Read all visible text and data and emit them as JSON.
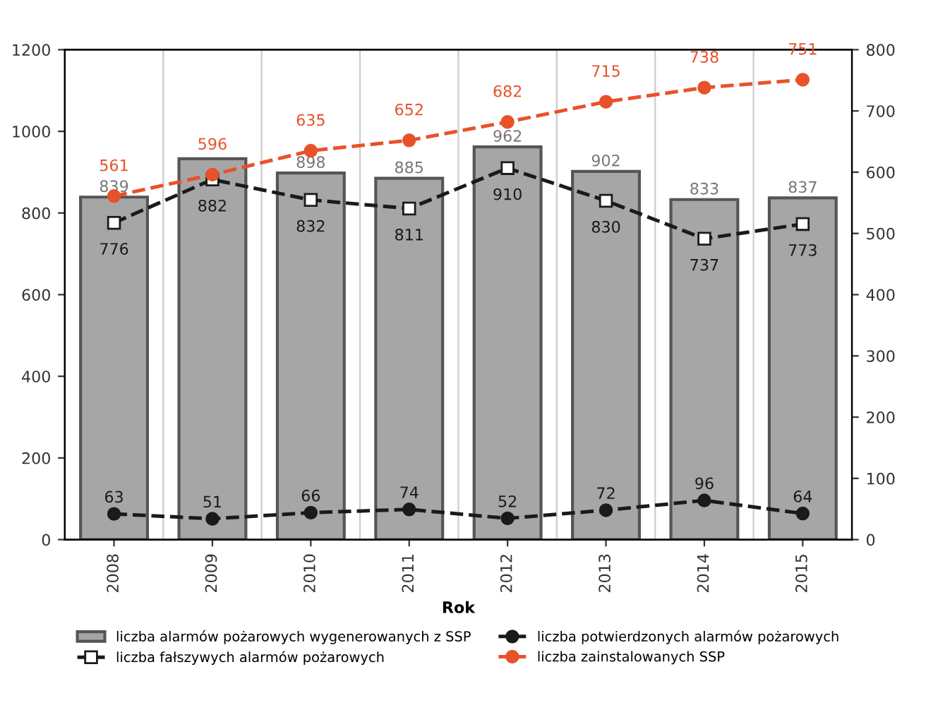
{
  "chart_data": {
    "type": "bar",
    "xlabel": "Rok",
    "categories": [
      "2008",
      "2009",
      "2010",
      "2011",
      "2012",
      "2013",
      "2014",
      "2015"
    ],
    "series": [
      {
        "name": "liczba alarmów pożarowych wygenerowanych z SSP",
        "color": "#a6a6a6",
        "values": [
          839,
          933,
          898,
          885,
          962,
          902,
          833,
          837
        ],
        "value_labels": [
          "839",
          null,
          "898",
          "885",
          "962",
          "902",
          "833",
          "837"
        ]
      },
      {
        "name": "liczba fałszywych alarmów pożarowych",
        "type": "line",
        "color": "#1a1a1a",
        "marker": "square",
        "line_style": "dashed",
        "values": [
          776,
          882,
          832,
          811,
          910,
          830,
          737,
          773
        ],
        "value_labels": [
          "776",
          "882",
          "832",
          "811",
          "910",
          "830",
          "737",
          "773"
        ]
      },
      {
        "name": "liczba potwierdzonych alarmów pożarowych",
        "type": "line",
        "color": "#1a1a1a",
        "marker": "circle",
        "line_style": "dashed",
        "values": [
          63,
          51,
          66,
          74,
          52,
          72,
          96,
          64
        ],
        "value_labels": [
          "63",
          "51",
          "66",
          "74",
          "52",
          "72",
          "96",
          "64"
        ]
      },
      {
        "name": "liczba zainstalowanych SSP",
        "type": "line",
        "axis": "y2",
        "color": "#e8522a",
        "marker": "circle",
        "line_style": "dashed",
        "values": [
          561,
          596,
          635,
          652,
          682,
          715,
          738,
          751
        ],
        "value_labels": [
          "561",
          "596",
          "635",
          "652",
          "682",
          "715",
          "738",
          "751"
        ]
      }
    ],
    "ylim": [
      0,
      1200
    ],
    "yticks": [
      0,
      200,
      400,
      600,
      800,
      1000,
      1200
    ],
    "y2lim": [
      0,
      800
    ],
    "y2ticks": [
      0,
      100,
      200,
      300,
      400,
      500,
      600,
      700,
      800
    ],
    "grid": "x",
    "legend": "bottom"
  }
}
